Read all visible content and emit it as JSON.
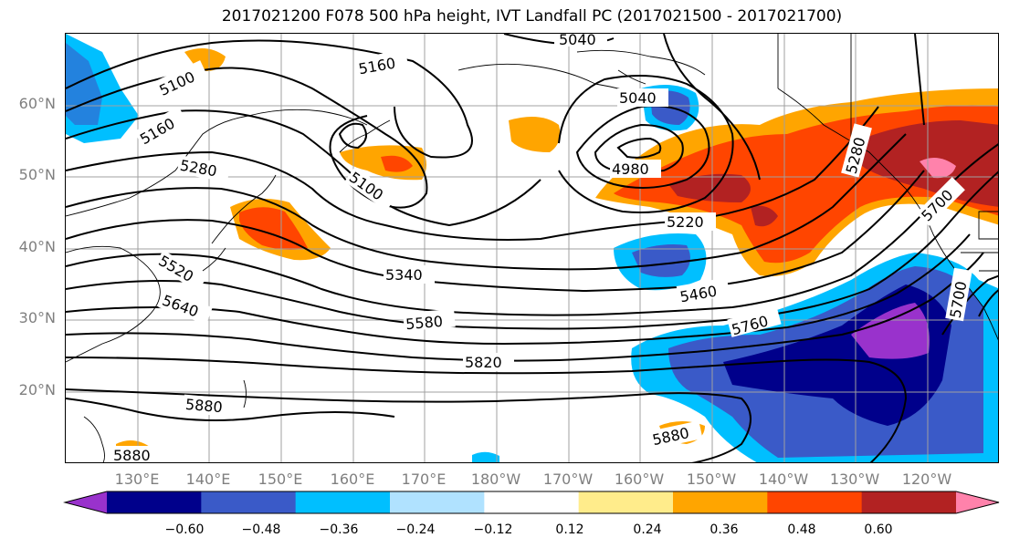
{
  "title": "2017021200 F078 500 hPa height, IVT Landfall PC (2017021500 - 2017021700)",
  "latitude_labels": [
    "60°N",
    "50°N",
    "40°N",
    "30°N",
    "20°N"
  ],
  "longitude_labels": [
    "130°E",
    "140°E",
    "150°E",
    "160°E",
    "170°E",
    "180°W",
    "170°W",
    "160°W",
    "150°W",
    "140°W",
    "130°W",
    "120°W"
  ],
  "contour_labels": [
    "5040",
    "5160",
    "5100",
    "5160",
    "5040",
    "5280",
    "4980",
    "5100",
    "5220",
    "5280",
    "5700",
    "5520",
    "5340",
    "5460",
    "5640",
    "5580",
    "5760",
    "5820",
    "5700",
    "5880",
    "5880",
    "5880"
  ],
  "colorbar": {
    "tick_labels": [
      "−0.60",
      "−0.48",
      "−0.36",
      "−0.24",
      "−0.12",
      "0.12",
      "0.24",
      "0.36",
      "0.48",
      "0.60"
    ],
    "colors": [
      "#9932cc",
      "#00008b",
      "#3a5ac8",
      "#00bfff",
      "#b0e2ff",
      "#ffffff",
      "#ffec8b",
      "#ffa500",
      "#ff4500",
      "#b22222",
      "#ff82ab"
    ]
  },
  "colors": {
    "frame": "#000000",
    "grid": "#a0a0a0",
    "contour": "#000000",
    "coast": "#000000"
  }
}
